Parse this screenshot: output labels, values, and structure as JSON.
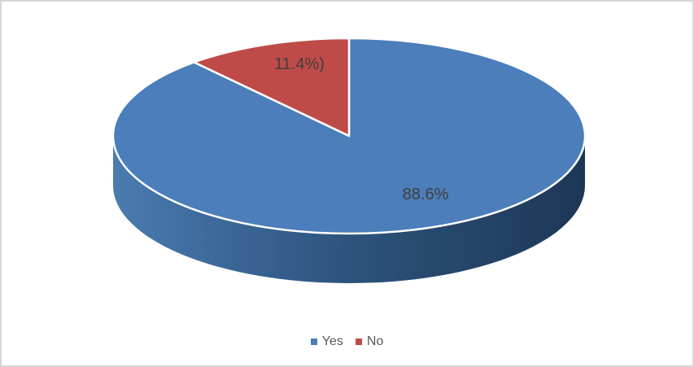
{
  "frame": {
    "background": "#FFFFFF",
    "border_color": "#D6D6D6"
  },
  "chart_data": {
    "type": "pie",
    "projection": "3d",
    "title": "",
    "categories": [
      "Yes",
      "No"
    ],
    "values": [
      88.6,
      11.4
    ],
    "data_labels": [
      "88.6%",
      "11.4%)"
    ],
    "slice_colors": [
      "#4B7EBA",
      "#BE4B48"
    ],
    "wall_gradient": [
      "#4A7CB0",
      "#3A6697",
      "#2B5078",
      "#1D3756"
    ],
    "slice_border_color": "#FFFFFF",
    "label_color": "#3F3F3F",
    "start_angle_deg": -90,
    "legend": {
      "position": "bottom",
      "text_color": "#595959",
      "entries": [
        {
          "label": "Yes",
          "color": "#4B7EBA"
        },
        {
          "label": "No",
          "color": "#BE4B48"
        }
      ]
    }
  }
}
